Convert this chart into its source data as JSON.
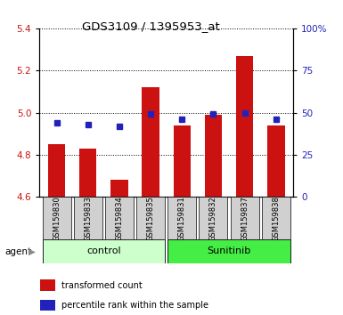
{
  "title": "GDS3109 / 1395953_at",
  "samples": [
    "GSM159830",
    "GSM159833",
    "GSM159834",
    "GSM159835",
    "GSM159831",
    "GSM159832",
    "GSM159837",
    "GSM159838"
  ],
  "red_values": [
    4.85,
    4.83,
    4.68,
    5.12,
    4.94,
    4.99,
    5.27,
    4.94
  ],
  "blue_percentiles": [
    44,
    43,
    42,
    49,
    46,
    49,
    50,
    46
  ],
  "ylim_left": [
    4.6,
    5.4
  ],
  "ylim_right": [
    0,
    100
  ],
  "yticks_left": [
    4.6,
    4.8,
    5.0,
    5.2,
    5.4
  ],
  "yticks_right": [
    0,
    25,
    50,
    75,
    100
  ],
  "ytick_labels_right": [
    "0",
    "25",
    "50",
    "75",
    "100%"
  ],
  "bar_color": "#cc1111",
  "blue_color": "#2222bb",
  "bar_bottom": 4.6,
  "groups": [
    {
      "label": "control",
      "indices": [
        0,
        1,
        2,
        3
      ],
      "color": "#ccffcc"
    },
    {
      "label": "Sunitinib",
      "indices": [
        4,
        5,
        6,
        7
      ],
      "color": "#44ee44"
    }
  ],
  "agent_label": "agent",
  "legend_red": "transformed count",
  "legend_blue": "percentile rank within the sample",
  "background_xlabel": "#d0d0d0",
  "grid_color": "#000000"
}
